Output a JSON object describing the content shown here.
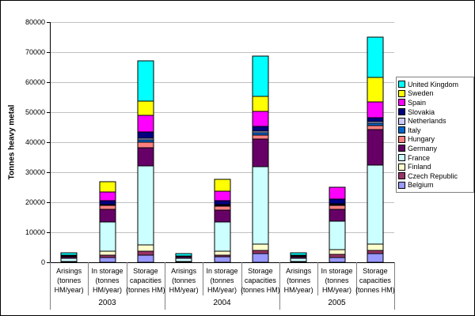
{
  "chart_data": {
    "type": "bar",
    "stacked": true,
    "title": "",
    "ylabel": "Tonnes heavy metal",
    "xlabel": "",
    "ylim": [
      0,
      80000
    ],
    "ytick_interval": 10000,
    "ytick_labels": [
      "0",
      "10000",
      "20000",
      "30000",
      "40000",
      "50000",
      "60000",
      "70000",
      "80000"
    ],
    "grid": true,
    "legend_position": "right",
    "group_labels": [
      "2003",
      "2004",
      "2005"
    ],
    "categories": [
      {
        "group": "2003",
        "label": "Arisings (tonnes HM/year)",
        "label_lines": [
          "Arisings",
          "(tonnes",
          "HM/year)"
        ]
      },
      {
        "group": "2003",
        "label": "In storage (tonnes HM/year)",
        "label_lines": [
          "In storage",
          "(tonnes",
          "HM/year)"
        ]
      },
      {
        "group": "2003",
        "label": "Storage capacities (tonnes HM)",
        "label_lines": [
          "Storage",
          "capacities",
          "(tonnes HM)"
        ]
      },
      {
        "group": "2004",
        "label": "Arisings (tonnes HM/year)",
        "label_lines": [
          "Arisings",
          "(tonnes",
          "HM/year)"
        ]
      },
      {
        "group": "2004",
        "label": "In storage (tonnes HM/year)",
        "label_lines": [
          "In storage",
          "(tonnes",
          "HM/year)"
        ]
      },
      {
        "group": "2004",
        "label": "Storage capacities (tonnes HM)",
        "label_lines": [
          "Storage",
          "capacities",
          "(tonnes HM)"
        ]
      },
      {
        "group": "2005",
        "label": "Arisings (tonnes HM/year)",
        "label_lines": [
          "Arisings",
          "(tonnes",
          "HM/year)"
        ]
      },
      {
        "group": "2005",
        "label": "In storage (tonnes HM/year)",
        "label_lines": [
          "In storage",
          "(tonnes",
          "HM/year)"
        ]
      },
      {
        "group": "2005",
        "label": "Storage capacities (tonnes HM)",
        "label_lines": [
          "Storage",
          "capacities",
          "(tonnes HM)"
        ]
      }
    ],
    "stack_order": "first series at bottom of stack; legend lists series top-to-bottom in reverse order",
    "series": [
      {
        "name": "Belgium",
        "color": "#9999FF",
        "values": [
          120,
          1500,
          2400,
          120,
          1800,
          2800,
          110,
          1700,
          2900
        ]
      },
      {
        "name": "Czech Republic",
        "color": "#993366",
        "values": [
          50,
          800,
          1200,
          45,
          600,
          1100,
          45,
          1000,
          1000
        ]
      },
      {
        "name": "Finland",
        "color": "#FFFFCC",
        "values": [
          70,
          1500,
          2100,
          65,
          1400,
          2200,
          70,
          1500,
          2200
        ]
      },
      {
        "name": "France",
        "color": "#CCFFFF",
        "values": [
          1150,
          9500,
          26300,
          1100,
          9500,
          25700,
          1150,
          9500,
          26200
        ]
      },
      {
        "name": "Germany",
        "color": "#660066",
        "values": [
          450,
          4300,
          6100,
          400,
          4000,
          9300,
          400,
          3900,
          11900
        ]
      },
      {
        "name": "Hungary",
        "color": "#FF8080",
        "values": [
          50,
          1300,
          1900,
          55,
          1350,
          1350,
          55,
          1450,
          1300
        ]
      },
      {
        "name": "Italy",
        "color": "#0066CC",
        "values": [
          0,
          200,
          800,
          0,
          220,
          800,
          0,
          230,
          800
        ]
      },
      {
        "name": "Netherlands",
        "color": "#CCCCFF",
        "values": [
          15,
          200,
          500,
          15,
          250,
          500,
          15,
          280,
          500
        ]
      },
      {
        "name": "Slovakia",
        "color": "#000080",
        "values": [
          50,
          1200,
          2100,
          45,
          1400,
          1400,
          50,
          1500,
          1400
        ]
      },
      {
        "name": "Spain",
        "color": "#FF00FF",
        "values": [
          160,
          2900,
          5600,
          150,
          3100,
          5000,
          160,
          3900,
          5100
        ]
      },
      {
        "name": "Sweden",
        "color": "#FFFF00",
        "values": [
          250,
          3400,
          4700,
          225,
          4000,
          5200,
          250,
          0,
          8300
        ]
      },
      {
        "name": "United Kingdom",
        "color": "#00FFFF",
        "values": [
          900,
          0,
          13500,
          800,
          0,
          13300,
          950,
          0,
          13300
        ]
      }
    ],
    "colors": {
      "gridline": "#c0c0c0",
      "axis": "#000000",
      "separator": "#808080",
      "segment_border": "#000000",
      "background": "#ffffff"
    }
  }
}
